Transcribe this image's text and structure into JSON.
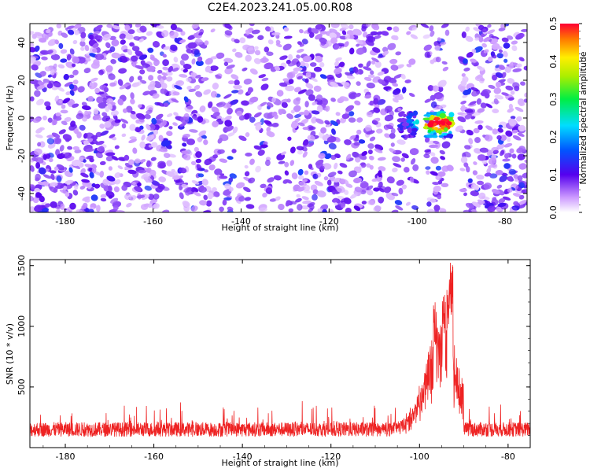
{
  "figure": {
    "title": "C2E4.2023.241.05.00.R08"
  },
  "chart_data": [
    {
      "type": "heatmap",
      "xlabel": "Height of straight line (km)",
      "ylabel": "Frequency (Hz)",
      "xlim": [
        -188,
        -75
      ],
      "ylim": [
        -50,
        50
      ],
      "xticks": [
        -180,
        -160,
        -140,
        -120,
        -100,
        -80
      ],
      "yticks": [
        -40,
        -20,
        0,
        20,
        40
      ],
      "colorbar": {
        "label": "Normalized spectral amplitude",
        "range": [
          0.0,
          0.5
        ],
        "ticks": [
          0.0,
          0.1,
          0.2,
          0.3,
          0.4,
          0.5
        ]
      },
      "background_level": 0.05,
      "gaps": [
        [
          -100,
          -98
        ],
        [
          -93,
          -90
        ]
      ],
      "hotspot": {
        "x_range": [
          -104,
          -92
        ],
        "freq_range": [
          -10,
          3
        ],
        "peak_value": 0.5,
        "peak_x": -95,
        "peak_freq": -3
      }
    },
    {
      "type": "line",
      "xlabel": "Height of straight line (km)",
      "ylabel": "SNR (10 * v/v)",
      "xlim": [
        -188,
        -75
      ],
      "ylim": [
        0,
        1550
      ],
      "xticks": [
        -180,
        -160,
        -140,
        -120,
        -100,
        -80
      ],
      "yticks": [
        500,
        1000,
        1500
      ],
      "color": "#ee2222",
      "baseline": {
        "mean": 150,
        "range": [
          60,
          380
        ]
      },
      "peaks": [
        {
          "x": -96.5,
          "y": 1200
        },
        {
          "x": -94.5,
          "y": 1300
        },
        {
          "x": -93.5,
          "y": 1390
        },
        {
          "x": -92.8,
          "y": 1550
        }
      ]
    }
  ]
}
